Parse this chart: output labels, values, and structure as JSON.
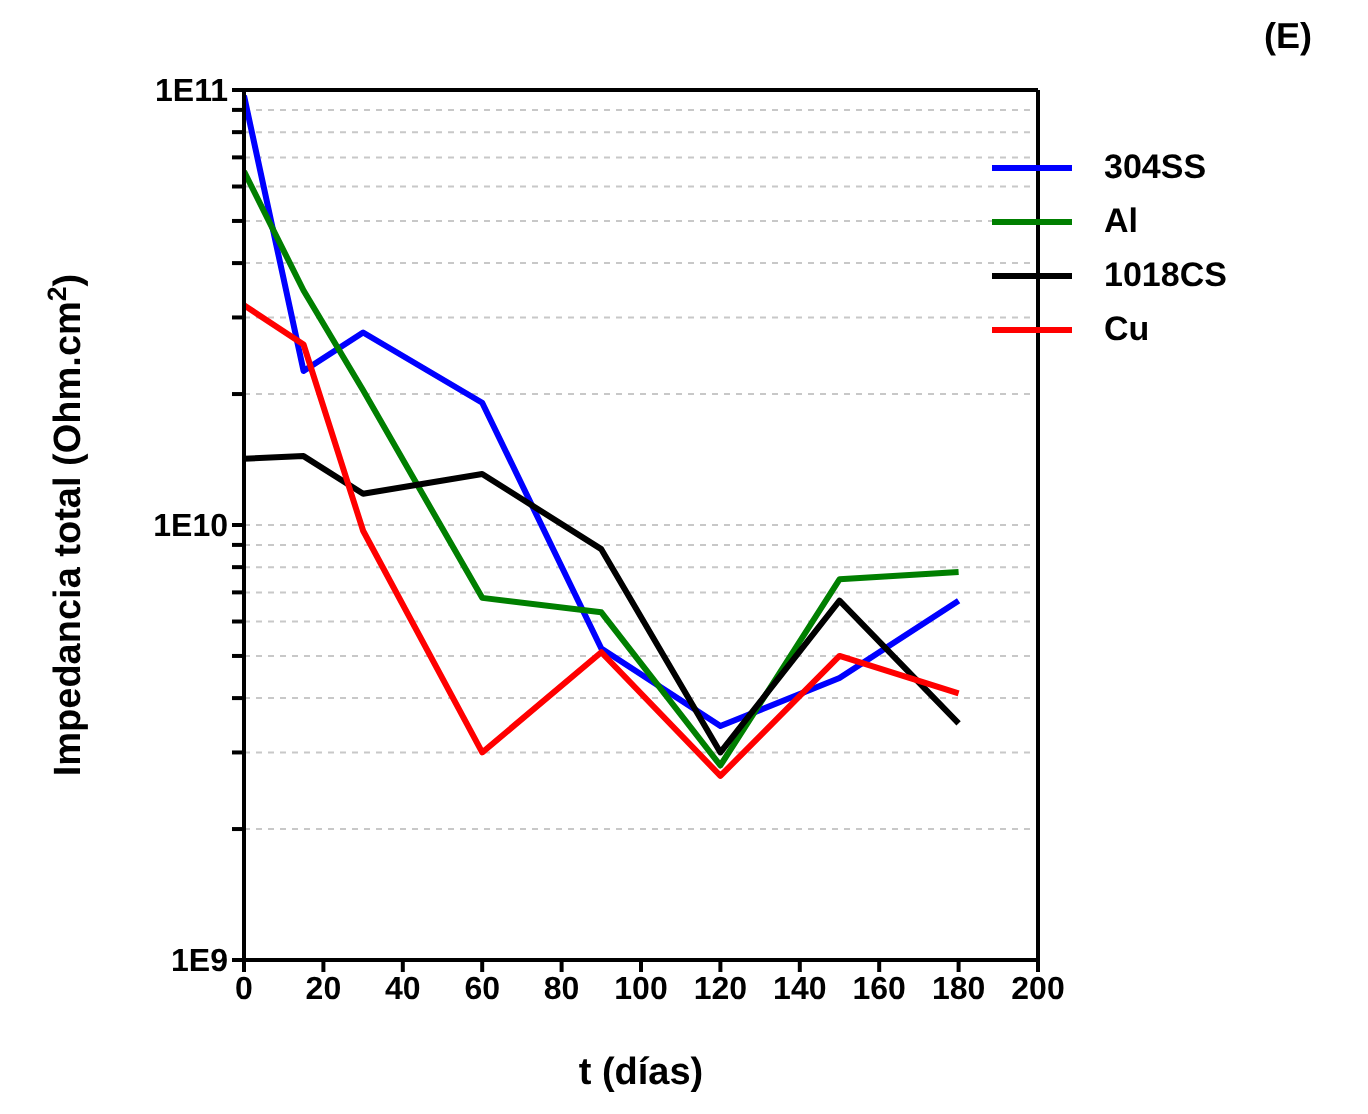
{
  "chart_data": {
    "type": "line",
    "xlabel": "t (días)",
    "ylabel": "Impedancia total (Ohm.cm$^{2}$)",
    "annotations": [
      "(E)"
    ],
    "x": [
      0,
      15,
      30,
      60,
      90,
      120,
      150,
      180
    ],
    "series": [
      {
        "name": "304SS",
        "color": "#0000ff",
        "values": [
          97000000000.0,
          22600000000.0,
          27700000000.0,
          19100000000.0,
          5200000000.0,
          3450000000.0,
          4450000000.0,
          6700000000.0
        ]
      },
      {
        "name": "Al",
        "color": "#007f00",
        "values": [
          65000000000.0,
          34600000000.0,
          20400000000.0,
          6800000000.0,
          6300000000.0,
          2800000000.0,
          7500000000.0,
          7800000000.0
        ]
      },
      {
        "name": "1018CS",
        "color": "#000000",
        "values": [
          14200000000.0,
          14400000000.0,
          11800000000.0,
          13100000000.0,
          8800000000.0,
          3000000000.0,
          6700000000.0,
          3500000000.0
        ]
      },
      {
        "name": "Cu",
        "color": "#ff0000",
        "values": [
          32000000000.0,
          26000000000.0,
          9700000000.0,
          3000000000.0,
          5100000000.0,
          2650000000.0,
          5000000000.0,
          4100000000.0
        ]
      }
    ],
    "xlim": [
      0,
      200
    ],
    "xticks": [
      0,
      20,
      40,
      60,
      80,
      100,
      120,
      140,
      160,
      180,
      200
    ],
    "ylim": [
      1000000000.0,
      100000000000.0
    ],
    "log": "y",
    "yticks": [
      {
        "value": 1000000000.0,
        "label": "1E9"
      },
      {
        "value": 2000000000.0,
        "label": null
      },
      {
        "value": 3000000000.0,
        "label": null
      },
      {
        "value": 4000000000.0,
        "label": null
      },
      {
        "value": 5000000000.0,
        "label": null
      },
      {
        "value": 6000000000.0,
        "label": null
      },
      {
        "value": 7000000000.0,
        "label": null
      },
      {
        "value": 8000000000.0,
        "label": null
      },
      {
        "value": 9000000000.0,
        "label": null
      },
      {
        "value": 10000000000.0,
        "label": "1E10"
      },
      {
        "value": 20000000000.0,
        "label": null
      },
      {
        "value": 30000000000.0,
        "label": null
      },
      {
        "value": 40000000000.0,
        "label": null
      },
      {
        "value": 50000000000.0,
        "label": null
      },
      {
        "value": 60000000000.0,
        "label": null
      },
      {
        "value": 70000000000.0,
        "label": null
      },
      {
        "value": 80000000000.0,
        "label": null
      },
      {
        "value": 90000000000.0,
        "label": null
      },
      {
        "value": 100000000000.0,
        "label": "1E11"
      }
    ],
    "grid": "y",
    "legend": "top right",
    "marker": "none",
    "line_style": "solid"
  }
}
